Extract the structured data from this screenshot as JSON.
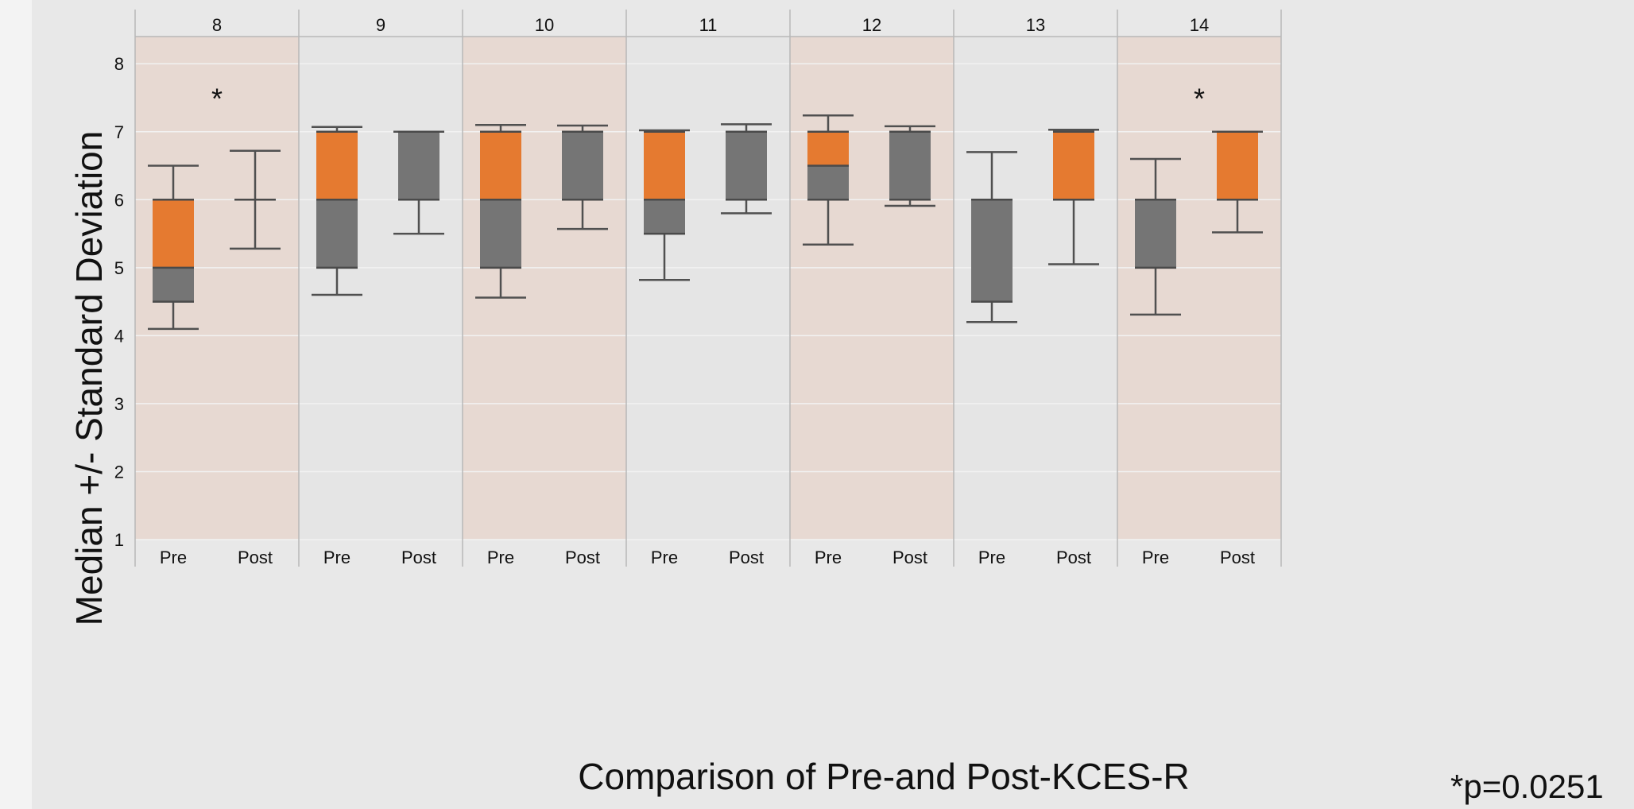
{
  "chart_data": {
    "type": "box",
    "title": "",
    "xlabel": "Comparison of Pre-and Post-KCES-R",
    "ylabel": "Median +/- Standard Deviation",
    "ylim": [
      1,
      8.4
    ],
    "y_ticks": [
      1,
      2,
      3,
      4,
      5,
      6,
      7,
      8
    ],
    "groups": [
      "8",
      "9",
      "10",
      "11",
      "12",
      "13",
      "14"
    ],
    "group_shading": [
      "shaded",
      "plain",
      "shaded",
      "plain",
      "shaded",
      "plain",
      "shaded"
    ],
    "sub_labels": [
      "Pre",
      "Post"
    ],
    "boxes": [
      {
        "group": "8",
        "label": "Pre",
        "whisker_low": 4.1,
        "q1": 4.5,
        "median": 5.0,
        "q3": 6.0,
        "whisker_high": 6.5
      },
      {
        "group": "8",
        "label": "Post",
        "whisker_low": 5.28,
        "q1": 6.0,
        "median": 6.0,
        "q3": 6.0,
        "whisker_high": 6.72
      },
      {
        "group": "9",
        "label": "Pre",
        "whisker_low": 4.6,
        "q1": 5.0,
        "median": 6.0,
        "q3": 7.0,
        "whisker_high": 7.07
      },
      {
        "group": "9",
        "label": "Post",
        "whisker_low": 5.5,
        "q1": 6.0,
        "median": 7.0,
        "q3": 7.0,
        "whisker_high": 7.0
      },
      {
        "group": "10",
        "label": "Pre",
        "whisker_low": 4.56,
        "q1": 5.0,
        "median": 6.0,
        "q3": 7.0,
        "whisker_high": 7.1
      },
      {
        "group": "10",
        "label": "Post",
        "whisker_low": 5.57,
        "q1": 6.0,
        "median": 7.0,
        "q3": 7.0,
        "whisker_high": 7.09
      },
      {
        "group": "11",
        "label": "Pre",
        "whisker_low": 4.82,
        "q1": 5.5,
        "median": 6.0,
        "q3": 7.0,
        "whisker_high": 7.02
      },
      {
        "group": "11",
        "label": "Post",
        "whisker_low": 5.8,
        "q1": 6.0,
        "median": 7.0,
        "q3": 7.0,
        "whisker_high": 7.11
      },
      {
        "group": "12",
        "label": "Pre",
        "whisker_low": 5.34,
        "q1": 6.0,
        "median": 6.5,
        "q3": 7.0,
        "whisker_high": 7.24
      },
      {
        "group": "12",
        "label": "Post",
        "whisker_low": 5.91,
        "q1": 6.0,
        "median": 7.0,
        "q3": 7.0,
        "whisker_high": 7.08
      },
      {
        "group": "13",
        "label": "Pre",
        "whisker_low": 4.2,
        "q1": 4.5,
        "median": 6.0,
        "q3": 6.0,
        "whisker_high": 6.7
      },
      {
        "group": "13",
        "label": "Post",
        "whisker_low": 5.05,
        "q1": 6.0,
        "median": 6.0,
        "q3": 7.0,
        "whisker_high": 7.03
      },
      {
        "group": "14",
        "label": "Pre",
        "whisker_low": 4.31,
        "q1": 5.0,
        "median": 6.0,
        "q3": 6.0,
        "whisker_high": 6.6
      },
      {
        "group": "14",
        "label": "Post",
        "whisker_low": 5.52,
        "q1": 6.0,
        "median": 6.0,
        "q3": 7.0,
        "whisker_high": 7.0
      }
    ],
    "significance_marks": [
      {
        "group": "8",
        "text": "*",
        "y": 7.55
      },
      {
        "group": "14",
        "text": "*",
        "y": 7.55
      }
    ],
    "footnote": "*p=0.0251",
    "colors": {
      "upper_box": "#e57a30",
      "lower_box": "#757575",
      "whisker": "#505050",
      "shaded_band": "#e7d9d2",
      "plain_band": "#e5e5e5",
      "background": "#e8e8e8",
      "gridline": "#f2f2f2",
      "divider": "#b8b8b8",
      "text": "#111111"
    }
  }
}
